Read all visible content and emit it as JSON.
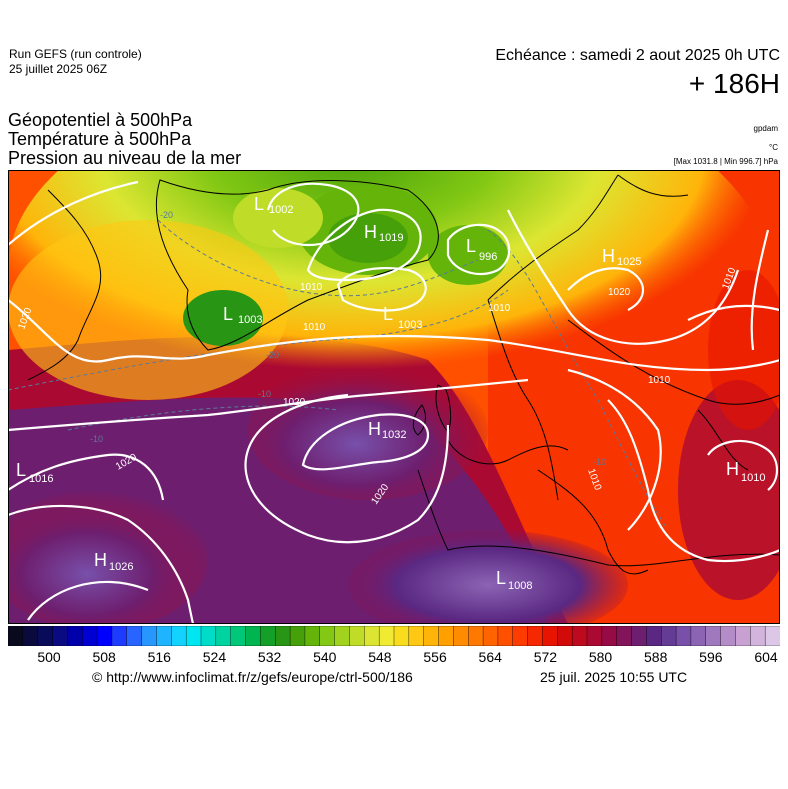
{
  "header": {
    "run_label": "Run GEFS (run controle)",
    "run_date": "25 juillet 2025 06Z",
    "valid_time": "Echéance : samedi 2 aout 2025 0h UTC",
    "lead_time": "+ 186H"
  },
  "titles": {
    "line1": "Géopotentiel à 500hPa",
    "line2": "Température à 500hPa",
    "line3": "Pression au niveau de la mer"
  },
  "units": {
    "geopotential": "gpdam",
    "temperature": "°C",
    "pressure_range": "[Max 1031.8 | Min 996.7] hPa"
  },
  "pressure_centers": [
    {
      "type": "L",
      "value": "1002"
    },
    {
      "type": "H",
      "value": "1019"
    },
    {
      "type": "L",
      "value": "996"
    },
    {
      "type": "H",
      "value": "1025"
    },
    {
      "type": "L",
      "value": "1003"
    },
    {
      "type": "L",
      "value": "1003"
    },
    {
      "type": "H",
      "value": "1032"
    },
    {
      "type": "L",
      "value": "1016"
    },
    {
      "type": "H",
      "value": "1010"
    },
    {
      "type": "H",
      "value": "1026"
    },
    {
      "type": "L",
      "value": "1008"
    }
  ],
  "isobar_labels": [
    "1010",
    "1010",
    "1010",
    "1010",
    "1020",
    "1020",
    "1020",
    "1020",
    "1020",
    "1010",
    "1010"
  ],
  "temperature_labels": [
    "-20",
    "-20",
    "-10",
    "-10",
    "-10"
  ],
  "colorbar": {
    "tick_labels": [
      "500",
      "508",
      "516",
      "524",
      "532",
      "540",
      "548",
      "556",
      "564",
      "572",
      "580",
      "588",
      "596",
      "604"
    ],
    "colors": [
      "#0a0a1e",
      "#0a0a3c",
      "#0a0a5a",
      "#0a0a82",
      "#0000aa",
      "#0000d2",
      "#0000ff",
      "#1e3cff",
      "#2864ff",
      "#2896ff",
      "#1eb4ff",
      "#14d2ff",
      "#00e6f0",
      "#00dcc8",
      "#00d2a0",
      "#00c878",
      "#00b450",
      "#14a028",
      "#289614",
      "#46a00a",
      "#64b40a",
      "#82c814",
      "#a0d21e",
      "#bedc28",
      "#dce632",
      "#f0ea32",
      "#fadc1e",
      "#ffc814",
      "#ffb40a",
      "#ffa000",
      "#ff8c00",
      "#ff7800",
      "#ff6400",
      "#ff5000",
      "#ff3c00",
      "#f52800",
      "#e61400",
      "#d20a0a",
      "#be0a1e",
      "#aa0a32",
      "#960a46",
      "#82145a",
      "#6e1e6e",
      "#5a2882",
      "#643c96",
      "#7850aa",
      "#8c64b4",
      "#a078be",
      "#b48cc8",
      "#c8a0d2",
      "#d2b4dc",
      "#dcc8e6"
    ]
  },
  "footer": {
    "source": "© http://www.infoclimat.fr/z/gefs/europe/ctrl-500/186",
    "generated": "25 juil. 2025 10:55 UTC"
  },
  "colors": {
    "isobar": "#ffffff",
    "temp_contour": "#5a7a9a",
    "coast": "#000000"
  }
}
